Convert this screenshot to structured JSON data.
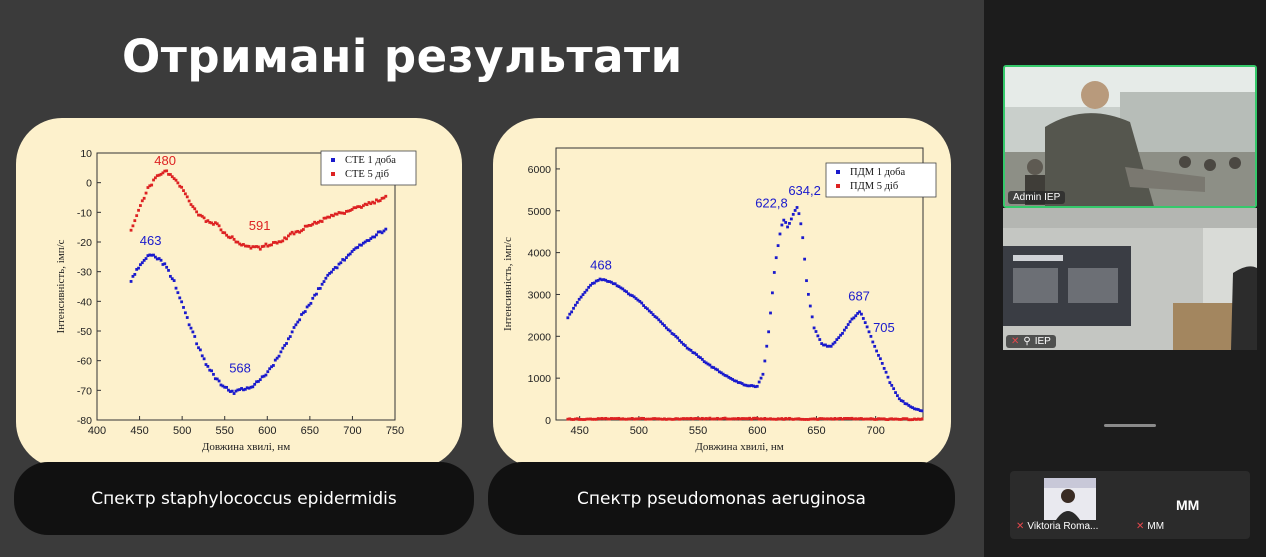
{
  "slide": {
    "title": "Отримані результати",
    "captions": {
      "left": "Спектр staphylococcus epidermidis",
      "right": "Спектр pseudomonas aeruginosa"
    }
  },
  "participants": {
    "admin": {
      "name": "Admin IEP"
    },
    "iep": {
      "name": "IEP"
    },
    "viktoria": {
      "name": "Viktoria Roma..."
    },
    "mm": {
      "name": "MM",
      "initials": "MM"
    }
  },
  "chart_data": [
    {
      "type": "scatter",
      "xlabel": "Довжина хвилі, нм",
      "ylabel": "Інтенсивність, імп/с",
      "xlim": [
        400,
        750
      ],
      "ylim": [
        -80,
        10
      ],
      "xticks": [
        400,
        450,
        500,
        550,
        600,
        650,
        700,
        750
      ],
      "yticks": [
        10,
        0,
        -10,
        -20,
        -30,
        -40,
        -50,
        -60,
        -70,
        -80
      ],
      "legend_position": "top-right",
      "series": [
        {
          "name": "СТЕ 1 доба",
          "color": "#1a1acc",
          "x": [
            440,
            450,
            460,
            463,
            470,
            480,
            490,
            500,
            510,
            520,
            530,
            540,
            550,
            560,
            568,
            580,
            590,
            600,
            610,
            620,
            630,
            640,
            650,
            660,
            670,
            680,
            690,
            700,
            710,
            720,
            730,
            740
          ],
          "y": [
            -33,
            -28,
            -25,
            -24,
            -25,
            -28,
            -33,
            -41,
            -49,
            -56,
            -62,
            -66,
            -69,
            -71,
            -70,
            -69,
            -67,
            -64,
            -60,
            -55,
            -50,
            -45,
            -41,
            -36,
            -32,
            -29,
            -26,
            -23,
            -21,
            -19,
            -17,
            -16
          ]
        },
        {
          "name": "СТЕ 5 діб",
          "color": "#dd2222",
          "x": [
            440,
            450,
            460,
            470,
            480,
            490,
            500,
            510,
            520,
            530,
            540,
            550,
            560,
            570,
            580,
            591,
            600,
            610,
            620,
            630,
            640,
            650,
            660,
            670,
            680,
            690,
            700,
            710,
            720,
            730,
            740
          ],
          "y": [
            -16,
            -8,
            -2,
            2,
            4,
            2,
            -2,
            -7,
            -11,
            -13,
            -14,
            -17,
            -19,
            -21,
            -22,
            -22,
            -21,
            -20,
            -19,
            -17,
            -16,
            -14,
            -13,
            -12,
            -11,
            -10,
            -9,
            -8,
            -7,
            -6,
            -5
          ]
        }
      ],
      "annotations": [
        {
          "label": "480",
          "x": 480,
          "y": 6,
          "color": "#dd2222"
        },
        {
          "label": "591",
          "x": 591,
          "y": -16,
          "color": "#dd2222"
        },
        {
          "label": "463",
          "x": 463,
          "y": -21,
          "color": "#1a1acc"
        },
        {
          "label": "568",
          "x": 568,
          "y": -64,
          "color": "#1a1acc"
        }
      ]
    },
    {
      "type": "scatter",
      "xlabel": "Довжина хвилі, нм",
      "ylabel": "Інтенсивність, імп/с",
      "xlim": [
        430,
        740
      ],
      "ylim": [
        0,
        6500
      ],
      "xticks": [
        450,
        500,
        550,
        600,
        650,
        700
      ],
      "yticks": [
        0,
        1000,
        2000,
        3000,
        4000,
        5000,
        6000
      ],
      "legend_position": "top-right",
      "series": [
        {
          "name": "ПДМ 1 доба",
          "color": "#1a1acc",
          "x": [
            440,
            450,
            460,
            468,
            480,
            500,
            520,
            540,
            560,
            580,
            590,
            600,
            605,
            610,
            615,
            620,
            622.8,
            626,
            630,
            634.2,
            638,
            642,
            648,
            655,
            662,
            670,
            680,
            687,
            693,
            700,
            705,
            712,
            720,
            730,
            740
          ],
          "y": [
            2450,
            2900,
            3250,
            3370,
            3250,
            2850,
            2300,
            1750,
            1300,
            950,
            830,
            800,
            1100,
            2200,
            3700,
            4600,
            4800,
            4600,
            4900,
            5100,
            4500,
            3200,
            2200,
            1800,
            1750,
            2000,
            2400,
            2600,
            2200,
            1700,
            1400,
            900,
            500,
            300,
            200
          ]
        },
        {
          "name": "ПДМ 5 діб",
          "color": "#dd2222",
          "x": [
            440,
            480,
            520,
            560,
            600,
            640,
            680,
            720,
            740
          ],
          "y": [
            20,
            30,
            25,
            35,
            30,
            25,
            30,
            20,
            15
          ]
        }
      ],
      "annotations": [
        {
          "label": "468",
          "x": 468,
          "y": 3600,
          "color": "#1a1acc"
        },
        {
          "label": "622,8",
          "x": 612,
          "y": 5080,
          "color": "#1a1acc"
        },
        {
          "label": "634,2",
          "x": 640,
          "y": 5380,
          "color": "#1a1acc"
        },
        {
          "label": "687",
          "x": 686,
          "y": 2850,
          "color": "#1a1acc"
        },
        {
          "label": "705",
          "x": 707,
          "y": 2100,
          "color": "#1a1acc"
        }
      ]
    }
  ]
}
